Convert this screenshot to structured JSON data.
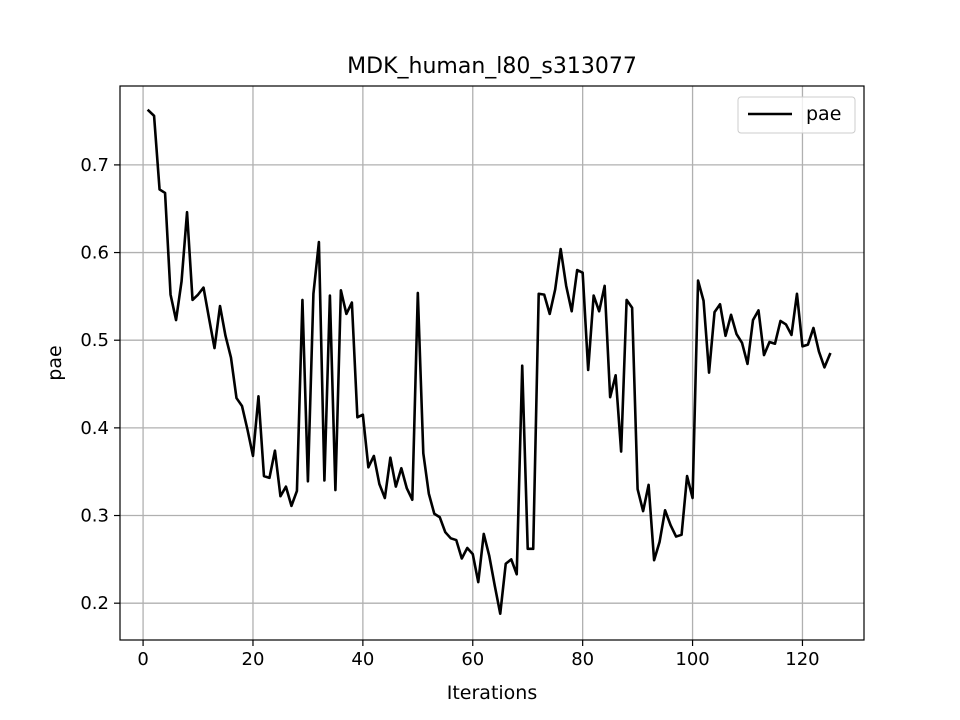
{
  "chart_data": {
    "type": "line",
    "title": "MDK_human_l80_s313077",
    "xlabel": "Iterations",
    "ylabel": "pae",
    "xlim": [
      -4.2,
      131.2
    ],
    "ylim": [
      0.158,
      0.79
    ],
    "xticks": [
      0,
      20,
      40,
      60,
      80,
      100,
      120
    ],
    "xtick_labels": [
      "0",
      "20",
      "40",
      "60",
      "80",
      "100",
      "120"
    ],
    "yticks": [
      0.2,
      0.3,
      0.4,
      0.5,
      0.6,
      0.7
    ],
    "ytick_labels": [
      "0.2",
      "0.3",
      "0.4",
      "0.5",
      "0.6",
      "0.7"
    ],
    "grid": true,
    "legend": "top-right",
    "series": [
      {
        "name": "pae",
        "color": "#000000",
        "x": [
          1,
          2,
          3,
          4,
          5,
          6,
          7,
          8,
          9,
          10,
          11,
          12,
          13,
          14,
          15,
          16,
          17,
          18,
          19,
          20,
          21,
          22,
          23,
          24,
          25,
          26,
          27,
          28,
          29,
          30,
          31,
          32,
          33,
          34,
          35,
          36,
          37,
          38,
          39,
          40,
          41,
          42,
          43,
          44,
          45,
          46,
          47,
          48,
          49,
          50,
          51,
          52,
          53,
          54,
          55,
          56,
          57,
          58,
          59,
          60,
          61,
          62,
          63,
          64,
          65,
          66,
          67,
          68,
          69,
          70,
          71,
          72,
          73,
          74,
          75,
          76,
          77,
          78,
          79,
          80,
          81,
          82,
          83,
          84,
          85,
          86,
          87,
          88,
          89,
          90,
          91,
          92,
          93,
          94,
          95,
          96,
          97,
          98,
          99,
          100,
          101,
          102,
          103,
          104,
          105,
          106,
          107,
          108,
          109,
          110,
          111,
          112,
          113,
          114,
          115,
          116,
          117,
          118,
          119,
          120,
          121,
          122,
          123,
          124,
          125
        ],
        "values": [
          0.762,
          0.756,
          0.672,
          0.668,
          0.552,
          0.523,
          0.567,
          0.646,
          0.546,
          0.552,
          0.56,
          0.525,
          0.491,
          0.539,
          0.505,
          0.48,
          0.434,
          0.425,
          0.398,
          0.368,
          0.436,
          0.345,
          0.343,
          0.374,
          0.322,
          0.333,
          0.311,
          0.328,
          0.546,
          0.339,
          0.553,
          0.612,
          0.34,
          0.551,
          0.329,
          0.557,
          0.53,
          0.543,
          0.412,
          0.415,
          0.355,
          0.368,
          0.336,
          0.32,
          0.366,
          0.333,
          0.354,
          0.331,
          0.318,
          0.554,
          0.371,
          0.325,
          0.302,
          0.298,
          0.281,
          0.274,
          0.272,
          0.251,
          0.263,
          0.256,
          0.224,
          0.279,
          0.254,
          0.22,
          0.188,
          0.245,
          0.25,
          0.233,
          0.471,
          0.262,
          0.262,
          0.553,
          0.552,
          0.53,
          0.558,
          0.604,
          0.562,
          0.533,
          0.58,
          0.577,
          0.466,
          0.551,
          0.533,
          0.562,
          0.435,
          0.46,
          0.373,
          0.546,
          0.537,
          0.33,
          0.305,
          0.335,
          0.249,
          0.27,
          0.306,
          0.289,
          0.276,
          0.278,
          0.345,
          0.32,
          0.568,
          0.545,
          0.463,
          0.532,
          0.541,
          0.505,
          0.529,
          0.507,
          0.497,
          0.473,
          0.523,
          0.534,
          0.483,
          0.498,
          0.496,
          0.522,
          0.518,
          0.506,
          0.553,
          0.493,
          0.495,
          0.514,
          0.487,
          0.469,
          0.484
        ]
      }
    ]
  }
}
